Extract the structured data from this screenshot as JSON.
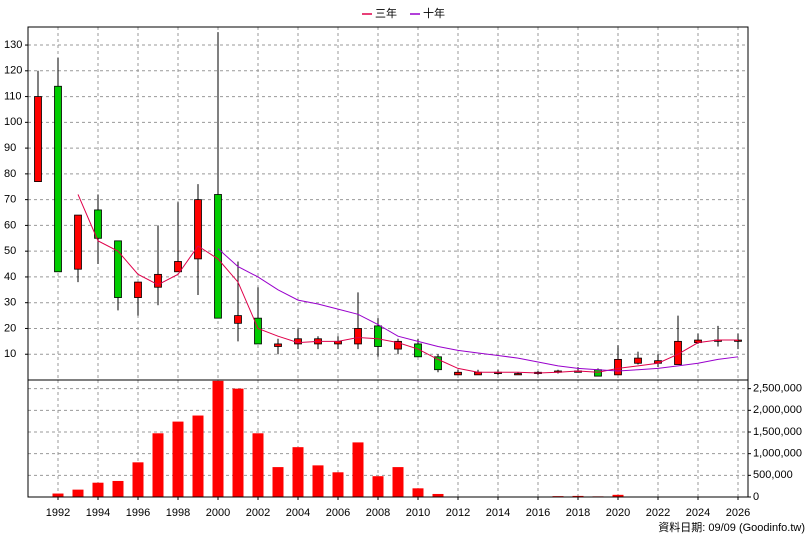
{
  "chart_data": [
    {
      "type": "candlestick",
      "x": [
        1991,
        1992,
        1993,
        1994,
        1995,
        1996,
        1997,
        1998,
        1999,
        2000,
        2001,
        2002,
        2003,
        2004,
        2005,
        2006,
        2007,
        2008,
        2009,
        2010,
        2011,
        2012,
        2013,
        2014,
        2015,
        2016,
        2017,
        2018,
        2019,
        2020,
        2021,
        2022,
        2023,
        2024,
        2025,
        2026
      ],
      "open": [
        77,
        114,
        43,
        66,
        54,
        32,
        36,
        42,
        47,
        72,
        22,
        24,
        13,
        14,
        14,
        14,
        14,
        21,
        12,
        14,
        9,
        2,
        2,
        2.5,
        2,
        2.5,
        3,
        3,
        4,
        2,
        6.5,
        6.5,
        6,
        14.5,
        15,
        15
      ],
      "close": [
        110,
        42,
        64,
        55,
        32,
        38,
        41,
        46,
        70,
        24,
        25,
        14,
        14,
        16,
        16,
        15,
        20,
        13,
        15,
        9,
        4,
        3,
        3,
        3,
        2.5,
        3,
        3.5,
        3.5,
        1.5,
        8,
        8.5,
        7.5,
        15,
        15.5,
        15.5,
        15.5
      ],
      "high": [
        120,
        125,
        64,
        72,
        54,
        38,
        60,
        69,
        76,
        135,
        46,
        36,
        16,
        20,
        17,
        17,
        34,
        24,
        16,
        16,
        10,
        4,
        4,
        4,
        3,
        3.5,
        4,
        5,
        4.5,
        13.5,
        11,
        10,
        25,
        18,
        21,
        18
      ],
      "low": [
        77,
        42,
        38,
        45,
        27,
        25,
        29,
        42,
        33,
        24,
        15,
        14,
        10,
        12,
        12,
        12,
        12,
        9,
        10,
        9,
        3,
        2,
        2,
        2,
        2,
        2,
        2.5,
        3,
        1.5,
        2,
        6,
        5,
        6,
        14,
        13,
        12
      ],
      "up_color": "#ff0000",
      "down_color": "#00cc00",
      "series": [
        {
          "name": "三年",
          "color": "#e0004a",
          "values": [
            null,
            null,
            72,
            54,
            50,
            41,
            37,
            41,
            52,
            47,
            38,
            20,
            17,
            14.5,
            15,
            15,
            16.5,
            16,
            14.5,
            12,
            8,
            4.5,
            3,
            3,
            3,
            2.7,
            3,
            3.5,
            3,
            4.5,
            5.5,
            6.5,
            10,
            14.5,
            15.5,
            15.5
          ]
        },
        {
          "name": "十年",
          "color": "#9900cc",
          "values": [
            null,
            null,
            null,
            null,
            null,
            null,
            null,
            null,
            null,
            51,
            44,
            40,
            35,
            31,
            29.5,
            27.5,
            25.5,
            21.5,
            17,
            15,
            13,
            11.5,
            10.5,
            9.5,
            8.5,
            7,
            5.5,
            4.5,
            4,
            3.5,
            4,
            4.5,
            5.5,
            6.5,
            8,
            9
          ]
        }
      ],
      "xlim": [
        1990.5,
        2026.5
      ],
      "xticks": [
        1992,
        1994,
        1996,
        1998,
        2000,
        2002,
        2004,
        2006,
        2008,
        2010,
        2012,
        2014,
        2016,
        2018,
        2020,
        2022,
        2024,
        2026
      ],
      "ylim": [
        0,
        137
      ],
      "yticks": [
        10,
        20,
        30,
        40,
        50,
        60,
        70,
        80,
        90,
        100,
        110,
        120,
        130
      ],
      "grid": true,
      "legend": "top"
    },
    {
      "type": "bar",
      "x": [
        1991,
        1992,
        1993,
        1994,
        1995,
        1996,
        1997,
        1998,
        1999,
        2000,
        2001,
        2002,
        2003,
        2004,
        2005,
        2006,
        2007,
        2008,
        2009,
        2010,
        2011,
        2012,
        2013,
        2014,
        2015,
        2016,
        2017,
        2018,
        2019,
        2020,
        2021,
        2022,
        2023,
        2024,
        2025,
        2026
      ],
      "values": [
        10000,
        80000,
        170000,
        330000,
        370000,
        800000,
        1470000,
        1740000,
        1880000,
        2680000,
        2500000,
        1470000,
        690000,
        1150000,
        730000,
        570000,
        1260000,
        480000,
        690000,
        200000,
        70000,
        5000,
        5000,
        10000,
        10000,
        10000,
        20000,
        25000,
        15000,
        50000,
        5000,
        5000,
        10000,
        10000,
        5000,
        5000
      ],
      "color": "#ff0000",
      "xlim": [
        1990.5,
        2026.5
      ],
      "xticks": [
        1992,
        1994,
        1996,
        1998,
        2000,
        2002,
        2004,
        2006,
        2008,
        2010,
        2012,
        2014,
        2016,
        2018,
        2020,
        2022,
        2024,
        2026
      ],
      "ylim": [
        0,
        2700000
      ],
      "yticks": [
        0,
        {
          "value": 500000,
          "label": "500,000"
        },
        {
          "value": 1000000,
          "label": "1,000,000"
        },
        {
          "value": 1500000,
          "label": "1,500,000"
        },
        {
          "value": 2000000,
          "label": "2,000,000"
        },
        {
          "value": 2500000,
          "label": "2,500,000"
        }
      ],
      "grid": true
    }
  ],
  "footer": "資料日期: 09/09 (Goodinfo.tw)"
}
